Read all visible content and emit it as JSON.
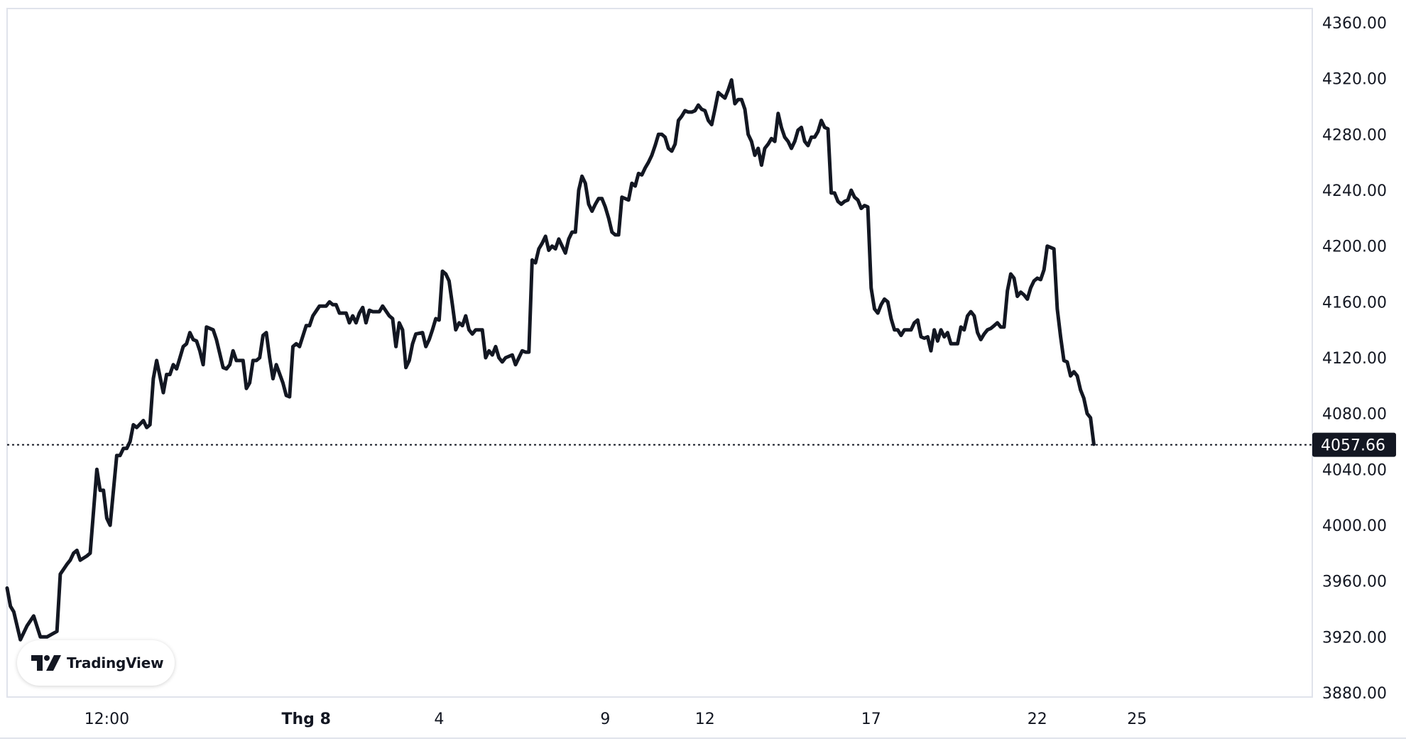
{
  "brand": {
    "name": "TradingView",
    "logo_icon": "tradingview-logo-icon"
  },
  "colors": {
    "line": "#131722",
    "background": "#ffffff",
    "price_tag_bg": "#131722",
    "grid_border": "#e0e3eb"
  },
  "chart_data": {
    "type": "line",
    "title": "",
    "xlabel": "",
    "ylabel": "",
    "grid": false,
    "legend": "none",
    "ylim": [
      3880,
      4360
    ],
    "y_ticks": [
      "4360.00",
      "4320.00",
      "4280.00",
      "4240.00",
      "4200.00",
      "4160.00",
      "4120.00",
      "4080.00",
      "4040.00",
      "4000.00",
      "3960.00",
      "3920.00",
      "3880.00"
    ],
    "x_ticks": [
      {
        "label": "12:00",
        "x": 14,
        "bold": false
      },
      {
        "label": "Thg 8",
        "x": 20,
        "bold": true
      },
      {
        "label": "4",
        "x": 24,
        "bold": false
      },
      {
        "label": "9",
        "x": 29,
        "bold": false
      },
      {
        "label": "12",
        "x": 32,
        "bold": false
      },
      {
        "label": "17",
        "x": 37,
        "bold": false
      },
      {
        "label": "22",
        "x": 42,
        "bold": false
      },
      {
        "label": "25",
        "x": 45,
        "bold": false
      }
    ],
    "x_range": [
      11.0,
      48.5
    ],
    "last_price": 4057.66,
    "last_price_label": "4057.66",
    "series": [
      {
        "values": [
          [
            11.0,
            3955
          ],
          [
            11.1,
            3942
          ],
          [
            11.2,
            3938
          ],
          [
            11.4,
            3918
          ],
          [
            11.6,
            3928
          ],
          [
            11.8,
            3935
          ],
          [
            12.0,
            3920
          ],
          [
            12.2,
            3920
          ],
          [
            12.5,
            3924
          ],
          [
            12.6,
            3965
          ],
          [
            12.8,
            3972
          ],
          [
            12.9,
            3975
          ],
          [
            13.0,
            3980
          ],
          [
            13.1,
            3982
          ],
          [
            13.2,
            3975
          ],
          [
            13.4,
            3978
          ],
          [
            13.5,
            3980
          ],
          [
            13.7,
            4040
          ],
          [
            13.8,
            4025
          ],
          [
            13.9,
            4025
          ],
          [
            14.0,
            4005
          ],
          [
            14.1,
            4000
          ],
          [
            14.3,
            4050
          ],
          [
            14.4,
            4050
          ],
          [
            14.5,
            4055
          ],
          [
            14.6,
            4055
          ],
          [
            14.7,
            4060
          ],
          [
            14.8,
            4072
          ],
          [
            14.9,
            4070
          ],
          [
            15.1,
            4075
          ],
          [
            15.2,
            4070
          ],
          [
            15.3,
            4072
          ],
          [
            15.4,
            4105
          ],
          [
            15.5,
            4118
          ],
          [
            15.7,
            4095
          ],
          [
            15.8,
            4108
          ],
          [
            15.9,
            4108
          ],
          [
            16.0,
            4115
          ],
          [
            16.1,
            4112
          ],
          [
            16.2,
            4120
          ],
          [
            16.3,
            4128
          ],
          [
            16.4,
            4130
          ],
          [
            16.5,
            4138
          ],
          [
            16.6,
            4133
          ],
          [
            16.7,
            4132
          ],
          [
            16.8,
            4125
          ],
          [
            16.9,
            4115
          ],
          [
            17.0,
            4142
          ],
          [
            17.2,
            4140
          ],
          [
            17.3,
            4133
          ],
          [
            17.5,
            4113
          ],
          [
            17.6,
            4112
          ],
          [
            17.7,
            4115
          ],
          [
            17.8,
            4125
          ],
          [
            17.9,
            4118
          ],
          [
            18.1,
            4118
          ],
          [
            18.2,
            4098
          ],
          [
            18.3,
            4102
          ],
          [
            18.4,
            4118
          ],
          [
            18.5,
            4118
          ],
          [
            18.6,
            4120
          ],
          [
            18.7,
            4136
          ],
          [
            18.8,
            4138
          ],
          [
            18.9,
            4120
          ],
          [
            19.0,
            4105
          ],
          [
            19.1,
            4115
          ],
          [
            19.3,
            4102
          ],
          [
            19.4,
            4093
          ],
          [
            19.5,
            4092
          ],
          [
            19.6,
            4128
          ],
          [
            19.7,
            4130
          ],
          [
            19.8,
            4128
          ],
          [
            20.0,
            4143
          ],
          [
            20.1,
            4143
          ],
          [
            20.2,
            4150
          ],
          [
            20.4,
            4157
          ],
          [
            20.6,
            4157
          ],
          [
            20.7,
            4160
          ],
          [
            20.8,
            4158
          ],
          [
            20.9,
            4158
          ],
          [
            21.0,
            4152
          ],
          [
            21.1,
            4152
          ],
          [
            21.2,
            4152
          ],
          [
            21.3,
            4145
          ],
          [
            21.4,
            4150
          ],
          [
            21.5,
            4145
          ],
          [
            21.6,
            4152
          ],
          [
            21.7,
            4156
          ],
          [
            21.8,
            4145
          ],
          [
            21.9,
            4154
          ],
          [
            22.0,
            4153
          ],
          [
            22.2,
            4153
          ],
          [
            22.3,
            4157
          ],
          [
            22.5,
            4150
          ],
          [
            22.6,
            4148
          ],
          [
            22.7,
            4128
          ],
          [
            22.8,
            4145
          ],
          [
            22.9,
            4140
          ],
          [
            23.0,
            4113
          ],
          [
            23.1,
            4118
          ],
          [
            23.2,
            4130
          ],
          [
            23.3,
            4137
          ],
          [
            23.5,
            4138
          ],
          [
            23.6,
            4128
          ],
          [
            23.7,
            4133
          ],
          [
            23.8,
            4140
          ],
          [
            23.9,
            4148
          ],
          [
            24.0,
            4147
          ],
          [
            24.1,
            4182
          ],
          [
            24.2,
            4180
          ],
          [
            24.3,
            4175
          ],
          [
            24.4,
            4158
          ],
          [
            24.5,
            4140
          ],
          [
            24.6,
            4145
          ],
          [
            24.7,
            4143
          ],
          [
            24.8,
            4150
          ],
          [
            24.9,
            4140
          ],
          [
            25.0,
            4137
          ],
          [
            25.1,
            4140
          ],
          [
            25.2,
            4140
          ],
          [
            25.3,
            4140
          ],
          [
            25.4,
            4120
          ],
          [
            25.5,
            4125
          ],
          [
            25.6,
            4122
          ],
          [
            25.7,
            4128
          ],
          [
            25.8,
            4120
          ],
          [
            25.9,
            4117
          ],
          [
            26.0,
            4120
          ],
          [
            26.2,
            4122
          ],
          [
            26.3,
            4115
          ],
          [
            26.4,
            4120
          ],
          [
            26.5,
            4125
          ],
          [
            26.6,
            4124
          ],
          [
            26.7,
            4124
          ],
          [
            26.8,
            4190
          ],
          [
            26.9,
            4188
          ],
          [
            27.0,
            4198
          ],
          [
            27.1,
            4202
          ],
          [
            27.2,
            4207
          ],
          [
            27.3,
            4197
          ],
          [
            27.4,
            4200
          ],
          [
            27.5,
            4198
          ],
          [
            27.6,
            4205
          ],
          [
            27.7,
            4200
          ],
          [
            27.8,
            4195
          ],
          [
            27.9,
            4205
          ],
          [
            28.0,
            4210
          ],
          [
            28.1,
            4210
          ],
          [
            28.2,
            4240
          ],
          [
            28.3,
            4250
          ],
          [
            28.4,
            4245
          ],
          [
            28.5,
            4230
          ],
          [
            28.6,
            4225
          ],
          [
            28.7,
            4230
          ],
          [
            28.8,
            4234
          ],
          [
            28.9,
            4234
          ],
          [
            29.0,
            4228
          ],
          [
            29.1,
            4220
          ],
          [
            29.2,
            4210
          ],
          [
            29.3,
            4208
          ],
          [
            29.4,
            4208
          ],
          [
            29.5,
            4235
          ],
          [
            29.7,
            4233
          ],
          [
            29.8,
            4245
          ],
          [
            29.9,
            4243
          ],
          [
            30.0,
            4252
          ],
          [
            30.1,
            4251
          ],
          [
            30.2,
            4256
          ],
          [
            30.3,
            4260
          ],
          [
            30.4,
            4265
          ],
          [
            30.5,
            4272
          ],
          [
            30.6,
            4280
          ],
          [
            30.7,
            4280
          ],
          [
            30.8,
            4278
          ],
          [
            30.9,
            4270
          ],
          [
            31.0,
            4268
          ],
          [
            31.1,
            4273
          ],
          [
            31.2,
            4290
          ],
          [
            31.3,
            4293
          ],
          [
            31.4,
            4297
          ],
          [
            31.5,
            4296
          ],
          [
            31.6,
            4296
          ],
          [
            31.7,
            4297
          ],
          [
            31.8,
            4301
          ],
          [
            31.9,
            4298
          ],
          [
            32.0,
            4297
          ],
          [
            32.1,
            4290
          ],
          [
            32.2,
            4287
          ],
          [
            32.3,
            4298
          ],
          [
            32.4,
            4310
          ],
          [
            32.5,
            4308
          ],
          [
            32.6,
            4306
          ],
          [
            32.7,
            4312
          ],
          [
            32.8,
            4319
          ],
          [
            32.9,
            4302
          ],
          [
            33.0,
            4305
          ],
          [
            33.1,
            4305
          ],
          [
            33.2,
            4298
          ],
          [
            33.3,
            4280
          ],
          [
            33.4,
            4275
          ],
          [
            33.5,
            4265
          ],
          [
            33.6,
            4270
          ],
          [
            33.7,
            4258
          ],
          [
            33.8,
            4270
          ],
          [
            33.9,
            4273
          ],
          [
            34.0,
            4277
          ],
          [
            34.1,
            4275
          ],
          [
            34.2,
            4295
          ],
          [
            34.3,
            4285
          ],
          [
            34.4,
            4278
          ],
          [
            34.5,
            4275
          ],
          [
            34.6,
            4270
          ],
          [
            34.7,
            4275
          ],
          [
            34.8,
            4283
          ],
          [
            34.9,
            4285
          ],
          [
            35.0,
            4275
          ],
          [
            35.1,
            4272
          ],
          [
            35.2,
            4278
          ],
          [
            35.3,
            4278
          ],
          [
            35.4,
            4282
          ],
          [
            35.5,
            4290
          ],
          [
            35.6,
            4285
          ],
          [
            35.7,
            4284
          ],
          [
            35.8,
            4238
          ],
          [
            35.9,
            4238
          ],
          [
            36.0,
            4232
          ],
          [
            36.1,
            4230
          ],
          [
            36.2,
            4232
          ],
          [
            36.3,
            4233
          ],
          [
            36.4,
            4240
          ],
          [
            36.5,
            4235
          ],
          [
            36.6,
            4233
          ],
          [
            36.7,
            4227
          ],
          [
            36.8,
            4229
          ],
          [
            36.9,
            4228
          ],
          [
            37.0,
            4170
          ],
          [
            37.1,
            4155
          ],
          [
            37.2,
            4152
          ],
          [
            37.3,
            4158
          ],
          [
            37.4,
            4162
          ],
          [
            37.5,
            4160
          ],
          [
            37.6,
            4148
          ],
          [
            37.7,
            4140
          ],
          [
            37.8,
            4140
          ],
          [
            37.9,
            4136
          ],
          [
            38.0,
            4140
          ],
          [
            38.1,
            4140
          ],
          [
            38.2,
            4140
          ],
          [
            38.3,
            4145
          ],
          [
            38.4,
            4147
          ],
          [
            38.5,
            4135
          ],
          [
            38.6,
            4134
          ],
          [
            38.7,
            4135
          ],
          [
            38.8,
            4125
          ],
          [
            38.9,
            4140
          ],
          [
            39.0,
            4132
          ],
          [
            39.1,
            4140
          ],
          [
            39.2,
            4135
          ],
          [
            39.3,
            4138
          ],
          [
            39.4,
            4130
          ],
          [
            39.5,
            4130
          ],
          [
            39.6,
            4130
          ],
          [
            39.7,
            4142
          ],
          [
            39.8,
            4140
          ],
          [
            39.9,
            4150
          ],
          [
            40.0,
            4153
          ],
          [
            40.1,
            4150
          ],
          [
            40.2,
            4138
          ],
          [
            40.3,
            4133
          ],
          [
            40.4,
            4137
          ],
          [
            40.5,
            4140
          ],
          [
            40.6,
            4141
          ],
          [
            40.7,
            4143
          ],
          [
            40.8,
            4145
          ],
          [
            40.9,
            4142
          ],
          [
            41.0,
            4142
          ],
          [
            41.1,
            4168
          ],
          [
            41.2,
            4180
          ],
          [
            41.3,
            4177
          ],
          [
            41.4,
            4164
          ],
          [
            41.5,
            4167
          ],
          [
            41.6,
            4165
          ],
          [
            41.7,
            4162
          ],
          [
            41.8,
            4170
          ],
          [
            41.9,
            4175
          ],
          [
            42.0,
            4177
          ],
          [
            42.1,
            4176
          ],
          [
            42.2,
            4183
          ],
          [
            42.3,
            4200
          ],
          [
            42.5,
            4198
          ],
          [
            42.6,
            4155
          ],
          [
            42.7,
            4135
          ],
          [
            42.8,
            4118
          ],
          [
            42.9,
            4117
          ],
          [
            43.0,
            4107
          ],
          [
            43.1,
            4110
          ],
          [
            43.2,
            4107
          ],
          [
            43.3,
            4097
          ],
          [
            43.4,
            4091
          ],
          [
            43.5,
            4080
          ],
          [
            43.6,
            4077
          ],
          [
            43.7,
            4058
          ]
        ]
      }
    ]
  }
}
